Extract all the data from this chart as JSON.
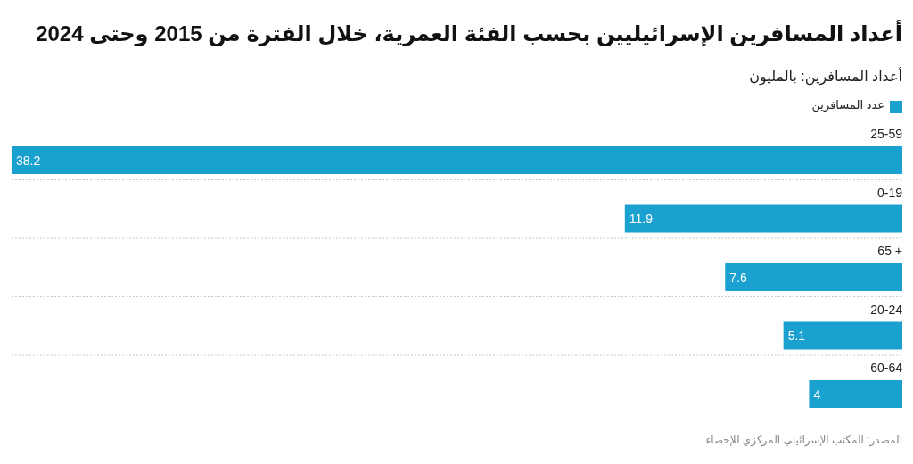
{
  "chart_data": {
    "type": "bar",
    "orientation": "horizontal",
    "title": "أعداد المسافرين الإسرائيليين بحسب الفئة العمرية، خلال الفترة من 2015 وحتى 2024",
    "subtitle": "أعداد المسافرين: بالمليون",
    "categories": [
      "25-59",
      "0-19",
      "65 +",
      "20-24",
      "60-64"
    ],
    "series": [
      {
        "name": "عدد المسافرين",
        "color": "#1ba1cf",
        "values": [
          38.2,
          11.9,
          7.6,
          5.1,
          4
        ]
      }
    ],
    "data_labels": true,
    "grid": "y",
    "legend": "top right",
    "annotations": [
      "المصدر: المكتب الإسرائيلي المركزي للإحصاء"
    ]
  }
}
